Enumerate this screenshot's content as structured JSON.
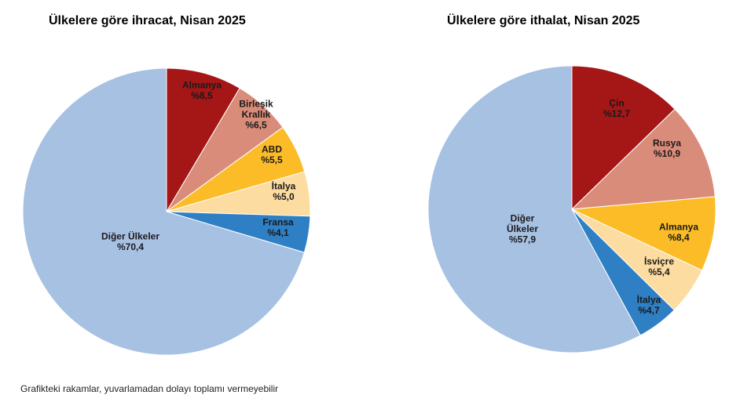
{
  "chart_data": [
    {
      "type": "pie",
      "title": "Ülkelere göre ihracat, Nisan 2025",
      "slices": [
        {
          "name": "Almanya",
          "lines": [
            "Almanya"
          ],
          "value_label": "%8,5",
          "value": 8.5,
          "color": "#a51616"
        },
        {
          "name": "Birleşik Krallık",
          "lines": [
            "Birleşik",
            "Krallık"
          ],
          "value_label": "%6,5",
          "value": 6.5,
          "color": "#d98c79"
        },
        {
          "name": "ABD",
          "lines": [
            "ABD"
          ],
          "value_label": "%5,5",
          "value": 5.5,
          "color": "#fbbc28"
        },
        {
          "name": "İtalya",
          "lines": [
            "İtalya"
          ],
          "value_label": "%5,0",
          "value": 5.0,
          "color": "#fcdca0"
        },
        {
          "name": "Fransa",
          "lines": [
            "Fransa"
          ],
          "value_label": "%4,1",
          "value": 4.1,
          "color": "#2f7fc4"
        },
        {
          "name": "Diğer Ülkeler",
          "lines": [
            "Diğer Ülkeler"
          ],
          "value_label": "%70,4",
          "value": 70.4,
          "color": "#a7c1e3"
        }
      ]
    },
    {
      "type": "pie",
      "title": "Ülkelere göre ithalat, Nisan 2025",
      "slices": [
        {
          "name": "Çin",
          "lines": [
            "Çin"
          ],
          "value_label": "%12,7",
          "value": 12.7,
          "color": "#a51616"
        },
        {
          "name": "Rusya",
          "lines": [
            "Rusya"
          ],
          "value_label": "%10,9",
          "value": 10.9,
          "color": "#d98c79"
        },
        {
          "name": "Almanya",
          "lines": [
            "Almanya"
          ],
          "value_label": "%8,4",
          "value": 8.4,
          "color": "#fbbc28"
        },
        {
          "name": "İsviçre",
          "lines": [
            "İsviçre"
          ],
          "value_label": "%5,4",
          "value": 5.4,
          "color": "#fcdca0"
        },
        {
          "name": "İtalya",
          "lines": [
            "İtalya"
          ],
          "value_label": "%4,7",
          "value": 4.7,
          "color": "#2f7fc4"
        },
        {
          "name": "Diğer Ülkeler",
          "lines": [
            "Diğer",
            "Ülkeler"
          ],
          "value_label": "%57,9",
          "value": 57.9,
          "color": "#a7c1e3"
        }
      ]
    }
  ],
  "footnote": "Grafikteki rakamlar, yuvarlamadan dolayı toplamı vermeyebilir"
}
